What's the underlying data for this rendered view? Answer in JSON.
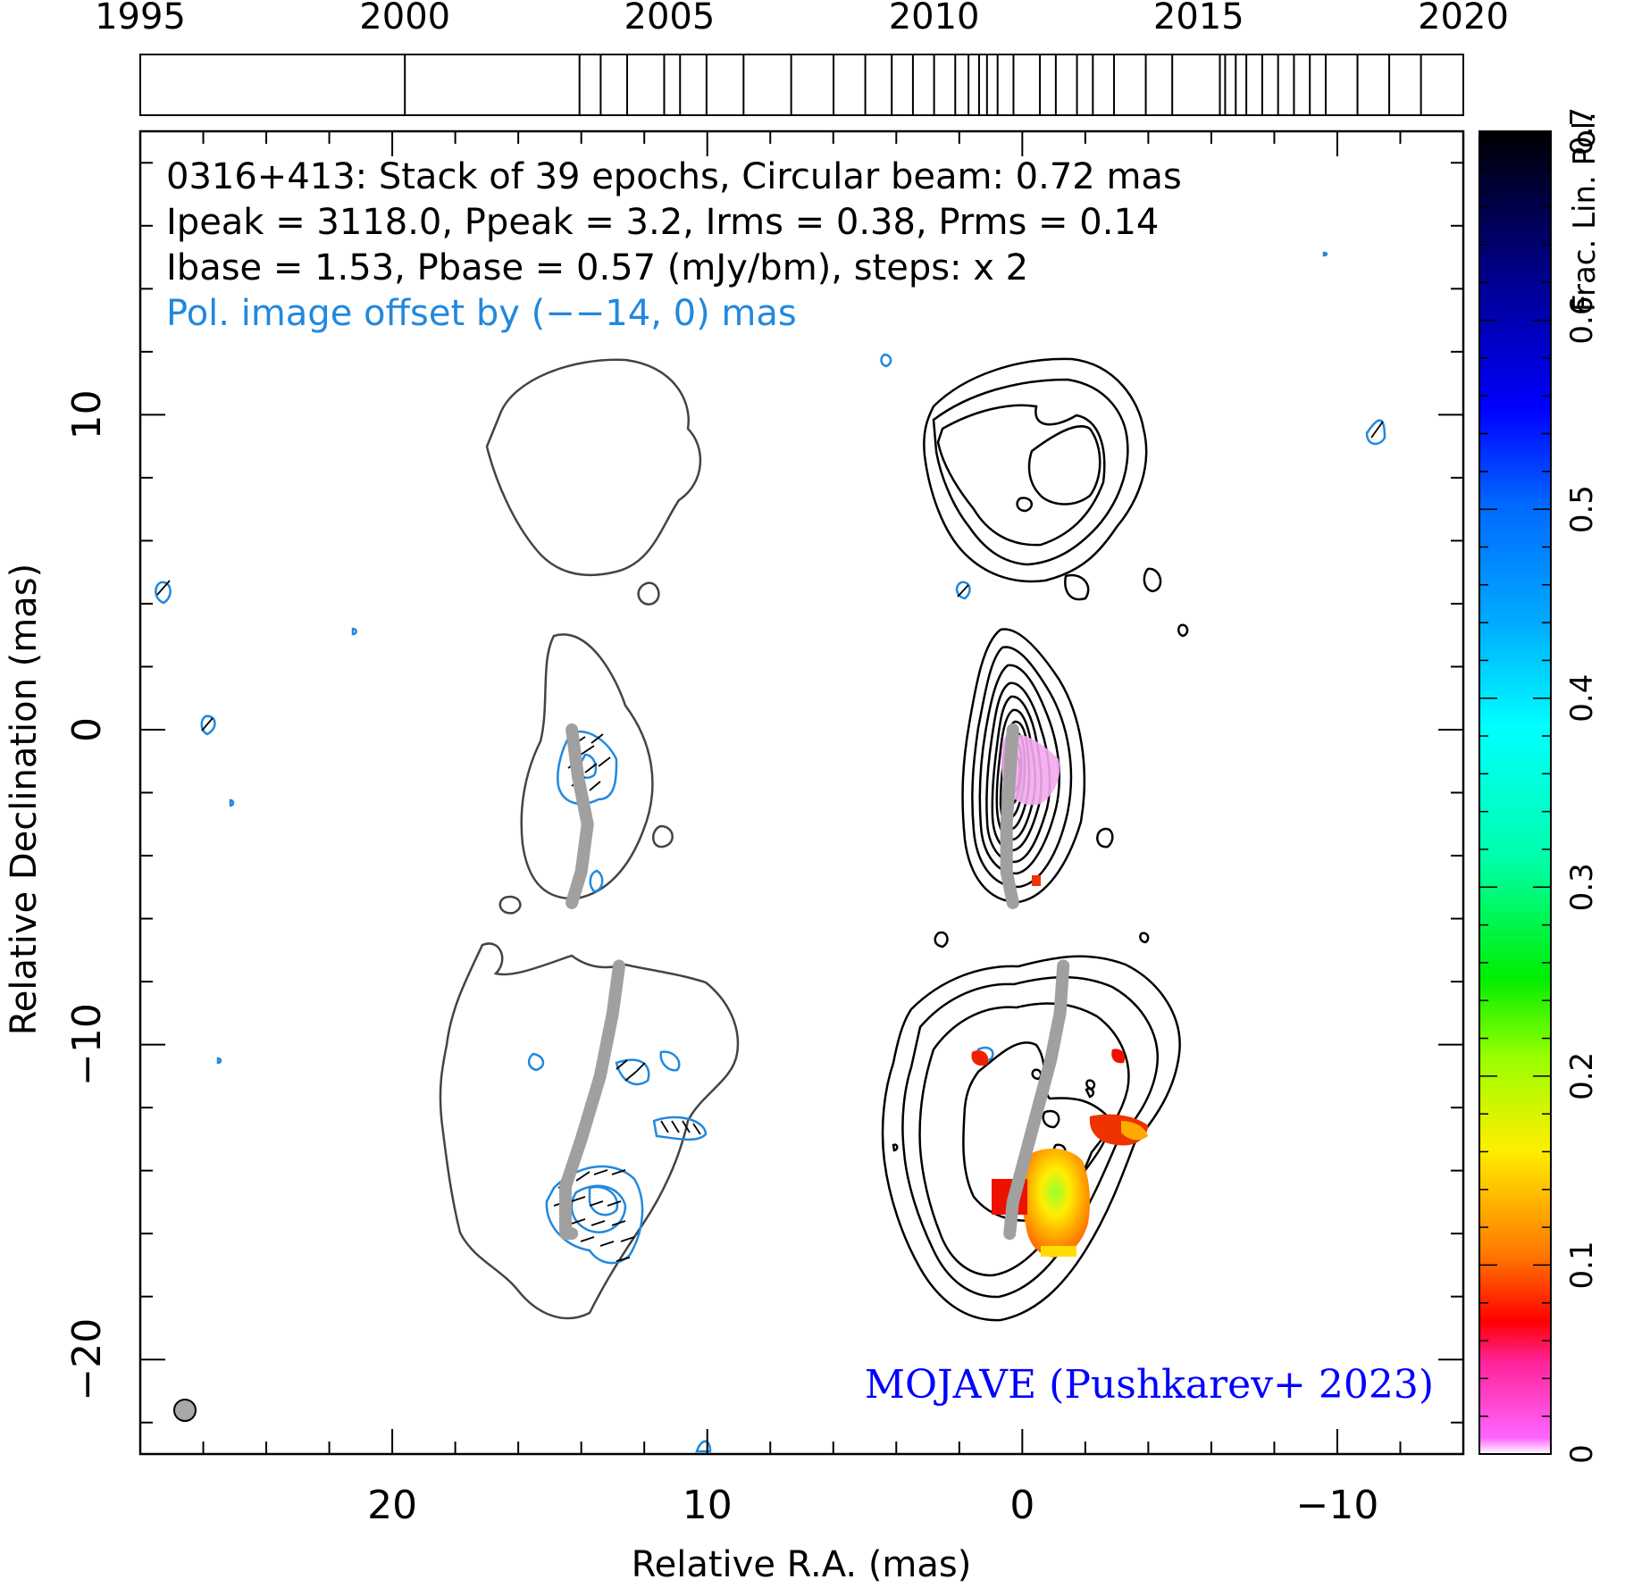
{
  "chart_data": {
    "type": "contour",
    "header": {
      "line1": "0316+413: Stack of 39 epochs, Circular beam: 0.72 mas",
      "line2": "Ipeak = 3118.0, Ppeak = 3.2, Irms = 0.38, Prms = 0.14",
      "line3": "Ibase = 1.53, Pbase = 0.57 (mJy/bm), steps: x 2",
      "line4": "Pol. image offset by (−−14, 0) mas"
    },
    "credit": "MOJAVE (Pushkarev+ 2023)",
    "xlabel": "Relative R.A. (mas)",
    "ylabel": "Relative Declination (mas)",
    "colorbar_label": "Frac. Lin. Pol.",
    "xlim": [
      28,
      -14
    ],
    "ylim": [
      -23,
      19
    ],
    "x_ticks": [
      20,
      10,
      0,
      -10
    ],
    "x_tick_labels": [
      "20",
      "10",
      "0",
      "−10"
    ],
    "y_ticks": [
      10,
      0,
      -10,
      -20
    ],
    "y_tick_labels": [
      "10",
      "0",
      "−10",
      "−20"
    ],
    "colorbar_range": [
      0,
      0.7
    ],
    "colorbar_ticks": [
      0,
      0.1,
      0.2,
      0.3,
      0.4,
      0.5,
      0.6,
      0.7
    ],
    "colorbar_tick_labels": [
      "0",
      "0.1",
      "0.2",
      "0.3",
      "0.4",
      "0.5",
      "0.6",
      "0.7"
    ],
    "timeline": {
      "range": [
        1995,
        2020
      ],
      "labels": [
        "1995",
        "2000",
        "2005",
        "2010",
        "2015",
        "2020"
      ],
      "epochs": [
        2000.0,
        2003.3,
        2003.7,
        2004.2,
        2004.9,
        2005.2,
        2005.7,
        2006.4,
        2007.3,
        2008.1,
        2008.7,
        2009.2,
        2009.6,
        2010.0,
        2010.4,
        2010.65,
        2010.85,
        2011.0,
        2011.2,
        2011.5,
        2012.0,
        2012.3,
        2012.7,
        2013.0,
        2013.4,
        2014.0,
        2014.5,
        2015.4,
        2015.5,
        2015.7,
        2015.9,
        2016.2,
        2016.5,
        2016.8,
        2017.1,
        2017.4,
        2018.0,
        2018.6,
        2019.2
      ]
    },
    "ridge_lines": [
      {
        "x": [
          14.3,
          14.1,
          13.8,
          14.0,
          14.3
        ],
        "y": [
          0.0,
          -1.5,
          -3.0,
          -4.5,
          -5.5
        ]
      },
      {
        "x": [
          0.3,
          0.4,
          0.5,
          0.5,
          0.3
        ],
        "y": [
          0.0,
          -1.5,
          -3.0,
          -4.5,
          -5.5
        ]
      },
      {
        "x": [
          12.8,
          13.0,
          13.4,
          14.0,
          14.5,
          14.5,
          14.3
        ],
        "y": [
          -7.5,
          -9.0,
          -11.0,
          -13.0,
          -14.5,
          -16.0,
          -16.0
        ]
      },
      {
        "x": [
          -1.3,
          -1.2,
          -0.9,
          -0.5,
          -0.1,
          0.3,
          0.4
        ],
        "y": [
          -7.5,
          -9.0,
          -10.5,
          -12.0,
          -13.5,
          -15.0,
          -16.0
        ]
      }
    ]
  }
}
